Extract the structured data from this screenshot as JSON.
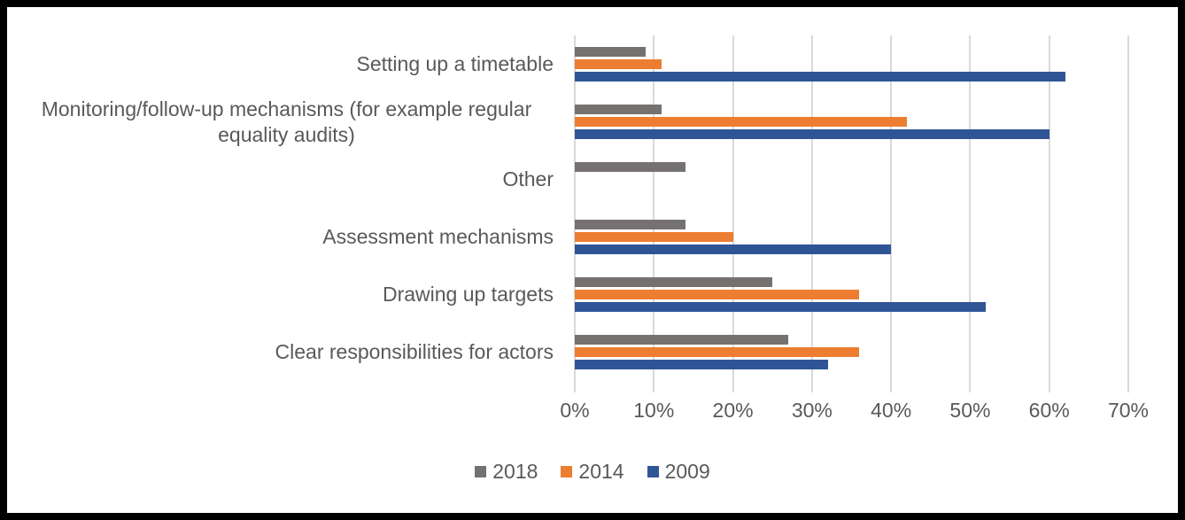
{
  "chart_data": {
    "type": "bar",
    "orientation": "horizontal",
    "title": "",
    "xlabel": "",
    "ylabel": "",
    "categories": [
      "Setting up a timetable",
      "Monitoring/follow-up mechanisms (for example regular equality audits)",
      "Other",
      "Assessment mechanisms",
      "Drawing up targets",
      "Clear responsibilities for actors"
    ],
    "series": [
      {
        "name": "2018",
        "color": "#767171",
        "values": [
          9,
          11,
          14,
          14,
          25,
          27
        ]
      },
      {
        "name": "2014",
        "color": "#ED7D31",
        "values": [
          11,
          42,
          0,
          20,
          36,
          36
        ]
      },
      {
        "name": "2009",
        "color": "#2F5597",
        "values": [
          62,
          60,
          0,
          40,
          52,
          32
        ]
      }
    ],
    "x_axis": {
      "min": 0,
      "max": 70,
      "step": 10,
      "tick_labels": [
        "0%",
        "10%",
        "20%",
        "30%",
        "40%",
        "50%",
        "60%",
        "70%"
      ]
    },
    "legend": {
      "position": "bottom",
      "entries": [
        "2018",
        "2014",
        "2009"
      ]
    },
    "grid": true,
    "colors": {
      "gridline": "#D9D9D9",
      "text": "#595959",
      "background": "#FFFFFF",
      "frame_border": "#000000"
    }
  }
}
